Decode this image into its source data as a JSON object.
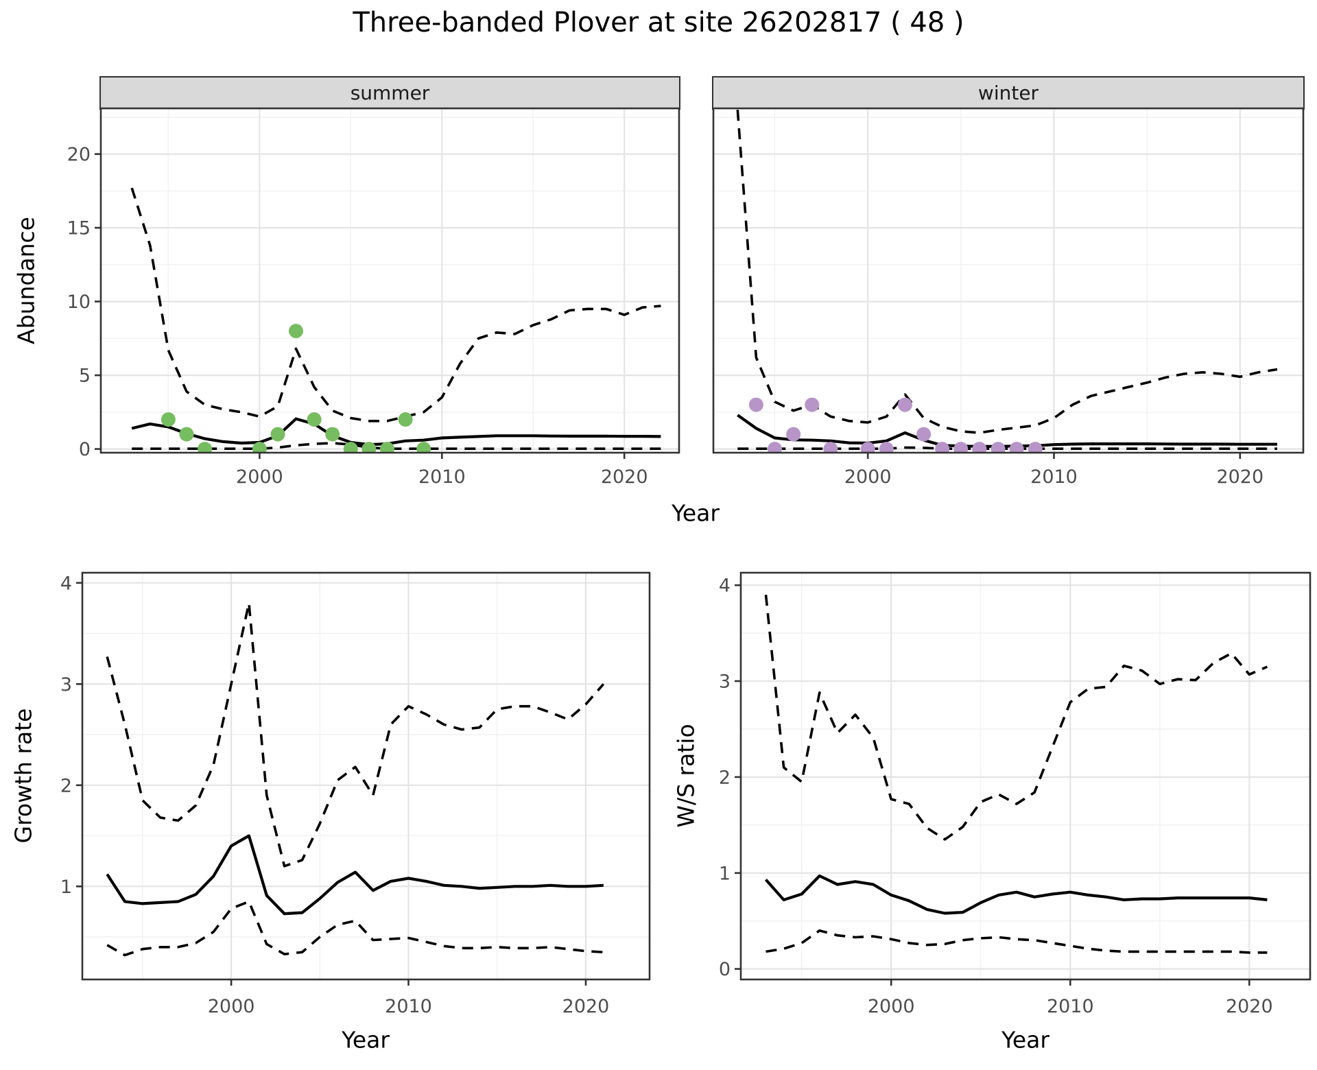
{
  "title": "Three-banded Plover at site 26202817 ( 48 )",
  "labels": {
    "y_top": "Abundance",
    "x_top": "Year",
    "y_bottom_left": "Growth rate",
    "x_bottom_left": "Year",
    "y_bottom_right": "W/S ratio",
    "x_bottom_right": "Year"
  },
  "facets": {
    "summer": "summer",
    "winter": "winter"
  },
  "colors": {
    "summer_points": "#76BC60",
    "winter_points": "#B795C8",
    "line": "#000000",
    "strip_fill": "#D9D9D9",
    "panel_border": "#333333",
    "grid_major": "#E4E4E4",
    "grid_minor": "#F1F1F1",
    "tick_text": "#4D4D4D"
  },
  "chart_data": [
    {
      "id": "abundance_summer",
      "type": "line",
      "facet_label": "summer",
      "ylabel": "Abundance",
      "xlabel": "Year",
      "legend_position": "none",
      "grid": true,
      "xlim": [
        1991.3,
        2023.0
      ],
      "ylim": [
        -0.25,
        23.1
      ],
      "x_ticks": [
        2000,
        2010,
        2020
      ],
      "x_minor": [
        1995,
        2005,
        2015
      ],
      "y_ticks": [
        0,
        5,
        10,
        15,
        20
      ],
      "y_minor": [
        2.5,
        7.5,
        12.5,
        17.5,
        22.5
      ],
      "years": [
        1993,
        1994,
        1995,
        1996,
        1997,
        1998,
        1999,
        2000,
        2001,
        2002,
        2003,
        2004,
        2005,
        2006,
        2007,
        2008,
        2009,
        2010,
        2011,
        2012,
        2013,
        2014,
        2015,
        2016,
        2017,
        2018,
        2019,
        2020,
        2021,
        2022
      ],
      "series": [
        {
          "name": "upper_95ci",
          "style": "dashed",
          "values": [
            17.7,
            13.8,
            6.7,
            3.9,
            3.0,
            2.7,
            2.5,
            2.2,
            2.9,
            6.8,
            4.2,
            2.6,
            2.1,
            1.9,
            1.9,
            2.2,
            2.5,
            3.5,
            5.8,
            7.5,
            7.9,
            7.8,
            8.4,
            8.8,
            9.4,
            9.5,
            9.5,
            9.1,
            9.6,
            9.7
          ]
        },
        {
          "name": "median",
          "style": "solid",
          "values": [
            1.4,
            1.7,
            1.5,
            1.05,
            0.7,
            0.5,
            0.4,
            0.45,
            0.9,
            2.05,
            1.7,
            0.9,
            0.45,
            0.3,
            0.35,
            0.55,
            0.6,
            0.75,
            0.8,
            0.85,
            0.9,
            0.9,
            0.9,
            0.88,
            0.87,
            0.87,
            0.87,
            0.86,
            0.86,
            0.85
          ]
        },
        {
          "name": "lower_95ci",
          "style": "dashed",
          "values": [
            0.02,
            0.02,
            0.02,
            0.02,
            0.02,
            0.02,
            0.02,
            0.02,
            0.1,
            0.25,
            0.35,
            0.4,
            0.3,
            0.1,
            0.02,
            0.02,
            0.02,
            0.02,
            0.02,
            0.02,
            0.02,
            0.02,
            0.02,
            0.02,
            0.02,
            0.02,
            0.02,
            0.02,
            0.02,
            0.02
          ]
        }
      ],
      "points": {
        "name": "observed_counts_summer",
        "color": "#76BC60",
        "years": [
          1995,
          1996,
          1997,
          2000,
          2001,
          2002,
          2003,
          2004,
          2005,
          2006,
          2007,
          2008,
          2009
        ],
        "values": [
          2,
          1,
          0,
          0,
          1,
          8,
          2,
          1,
          0,
          0,
          0,
          2,
          0
        ]
      }
    },
    {
      "id": "abundance_winter",
      "type": "line",
      "facet_label": "winter",
      "ylabel": "Abundance",
      "xlabel": "Year",
      "legend_position": "none",
      "grid": true,
      "xlim": [
        1991.7,
        2023.4
      ],
      "ylim": [
        -0.25,
        23.1
      ],
      "x_ticks": [
        2000,
        2010,
        2020
      ],
      "x_minor": [
        1995,
        2005,
        2015
      ],
      "y_ticks": [
        0,
        5,
        10,
        15,
        20
      ],
      "y_minor": [
        2.5,
        7.5,
        12.5,
        17.5,
        22.5
      ],
      "years": [
        1993,
        1994,
        1995,
        1996,
        1997,
        1998,
        1999,
        2000,
        2001,
        2002,
        2003,
        2004,
        2005,
        2006,
        2007,
        2008,
        2009,
        2010,
        2011,
        2012,
        2013,
        2014,
        2015,
        2016,
        2017,
        2018,
        2019,
        2020,
        2021,
        2022
      ],
      "series": [
        {
          "name": "upper_95ci",
          "style": "dashed",
          "values": [
            23.0,
            6.2,
            3.2,
            2.6,
            3.0,
            2.2,
            1.9,
            1.8,
            2.2,
            3.7,
            2.1,
            1.5,
            1.2,
            1.1,
            1.3,
            1.45,
            1.6,
            2.1,
            3.0,
            3.6,
            3.9,
            4.2,
            4.5,
            4.85,
            5.1,
            5.2,
            5.1,
            4.9,
            5.2,
            5.4
          ]
        },
        {
          "name": "median",
          "style": "solid",
          "values": [
            2.3,
            1.4,
            0.75,
            0.62,
            0.6,
            0.55,
            0.42,
            0.4,
            0.55,
            1.1,
            0.6,
            0.25,
            0.2,
            0.18,
            0.18,
            0.2,
            0.22,
            0.3,
            0.33,
            0.35,
            0.35,
            0.35,
            0.35,
            0.34,
            0.33,
            0.33,
            0.33,
            0.32,
            0.32,
            0.32
          ]
        },
        {
          "name": "lower_95ci",
          "style": "dashed",
          "values": [
            0.02,
            0.02,
            0.02,
            0.02,
            0.02,
            0.02,
            0.02,
            0.02,
            0.02,
            0.1,
            0.08,
            0.02,
            0.02,
            0.02,
            0.02,
            0.02,
            0.02,
            0.02,
            0.02,
            0.02,
            0.02,
            0.02,
            0.02,
            0.02,
            0.02,
            0.02,
            0.02,
            0.02,
            0.02,
            0.02
          ]
        }
      ],
      "points": {
        "name": "observed_counts_winter",
        "color": "#B795C8",
        "years": [
          1994,
          1995,
          1996,
          1997,
          1998,
          2000,
          2001,
          2002,
          2003,
          2004,
          2005,
          2006,
          2007,
          2008,
          2009
        ],
        "values": [
          3,
          0,
          1,
          3,
          0,
          0,
          0,
          3,
          1,
          0,
          0,
          0,
          0,
          0,
          0
        ]
      }
    },
    {
      "id": "growth_rate",
      "type": "line",
      "ylabel": "Growth rate",
      "xlabel": "Year",
      "legend_position": "none",
      "grid": true,
      "xlim": [
        1991.6,
        2023.6
      ],
      "ylim": [
        0.08,
        4.1
      ],
      "x_ticks": [
        2000,
        2010,
        2020
      ],
      "x_minor": [
        1995,
        2005,
        2015
      ],
      "y_ticks": [
        1,
        2,
        3,
        4
      ],
      "y_minor": [
        0.5,
        1.5,
        2.5,
        3.5
      ],
      "years": [
        1993,
        1994,
        1995,
        1996,
        1997,
        1998,
        1999,
        2000,
        2001,
        2002,
        2003,
        2004,
        2005,
        2006,
        2007,
        2008,
        2009,
        2010,
        2011,
        2012,
        2013,
        2014,
        2015,
        2016,
        2017,
        2018,
        2019,
        2020,
        2021
      ],
      "series": [
        {
          "name": "upper_95ci",
          "style": "dashed",
          "values": [
            3.27,
            2.6,
            1.85,
            1.68,
            1.65,
            1.8,
            2.2,
            3.0,
            3.8,
            1.9,
            1.2,
            1.26,
            1.62,
            2.05,
            2.18,
            1.9,
            2.6,
            2.78,
            2.7,
            2.6,
            2.55,
            2.57,
            2.75,
            2.78,
            2.78,
            2.72,
            2.65,
            2.8,
            3.0
          ]
        },
        {
          "name": "median",
          "style": "solid",
          "values": [
            1.12,
            0.85,
            0.83,
            0.84,
            0.85,
            0.92,
            1.1,
            1.4,
            1.5,
            0.91,
            0.73,
            0.74,
            0.88,
            1.04,
            1.14,
            0.96,
            1.05,
            1.08,
            1.05,
            1.01,
            1.0,
            0.98,
            0.99,
            1.0,
            1.0,
            1.01,
            1.0,
            1.0,
            1.01
          ]
        },
        {
          "name": "lower_95ci",
          "style": "dashed",
          "values": [
            0.42,
            0.32,
            0.38,
            0.4,
            0.4,
            0.44,
            0.55,
            0.78,
            0.85,
            0.43,
            0.33,
            0.35,
            0.5,
            0.62,
            0.66,
            0.47,
            0.48,
            0.49,
            0.45,
            0.41,
            0.39,
            0.39,
            0.4,
            0.39,
            0.39,
            0.4,
            0.38,
            0.36,
            0.35
          ]
        }
      ]
    },
    {
      "id": "ws_ratio",
      "type": "line",
      "ylabel": "W/S ratio",
      "xlabel": "Year",
      "legend_position": "none",
      "grid": true,
      "xlim": [
        1991.6,
        2023.4
      ],
      "ylim": [
        -0.11,
        4.13
      ],
      "x_ticks": [
        2000,
        2010,
        2020
      ],
      "x_minor": [
        1995,
        2005,
        2015
      ],
      "y_ticks": [
        0,
        1,
        2,
        3,
        4
      ],
      "y_minor": [
        0.5,
        1.5,
        2.5,
        3.5
      ],
      "years": [
        1993,
        1994,
        1995,
        1996,
        1997,
        1998,
        1999,
        2000,
        2001,
        2002,
        2003,
        2004,
        2005,
        2006,
        2007,
        2008,
        2009,
        2010,
        2011,
        2012,
        2013,
        2014,
        2015,
        2016,
        2017,
        2018,
        2019,
        2020,
        2021
      ],
      "series": [
        {
          "name": "upper_95ci",
          "style": "dashed",
          "values": [
            3.9,
            2.1,
            1.95,
            2.88,
            2.46,
            2.65,
            2.41,
            1.77,
            1.72,
            1.47,
            1.35,
            1.48,
            1.74,
            1.82,
            1.72,
            1.84,
            2.31,
            2.78,
            2.92,
            2.94,
            3.16,
            3.11,
            2.97,
            3.02,
            3.01,
            3.19,
            3.29,
            3.07,
            3.15
          ]
        },
        {
          "name": "median",
          "style": "solid",
          "values": [
            0.93,
            0.72,
            0.78,
            0.97,
            0.88,
            0.91,
            0.88,
            0.77,
            0.71,
            0.62,
            0.58,
            0.59,
            0.69,
            0.77,
            0.8,
            0.75,
            0.78,
            0.8,
            0.77,
            0.75,
            0.72,
            0.73,
            0.73,
            0.74,
            0.74,
            0.74,
            0.74,
            0.74,
            0.72
          ]
        },
        {
          "name": "lower_95ci",
          "style": "dashed",
          "values": [
            0.18,
            0.21,
            0.27,
            0.4,
            0.35,
            0.33,
            0.34,
            0.31,
            0.27,
            0.25,
            0.26,
            0.3,
            0.32,
            0.33,
            0.31,
            0.3,
            0.27,
            0.24,
            0.21,
            0.19,
            0.18,
            0.18,
            0.18,
            0.18,
            0.18,
            0.18,
            0.18,
            0.17,
            0.17
          ]
        }
      ]
    }
  ]
}
